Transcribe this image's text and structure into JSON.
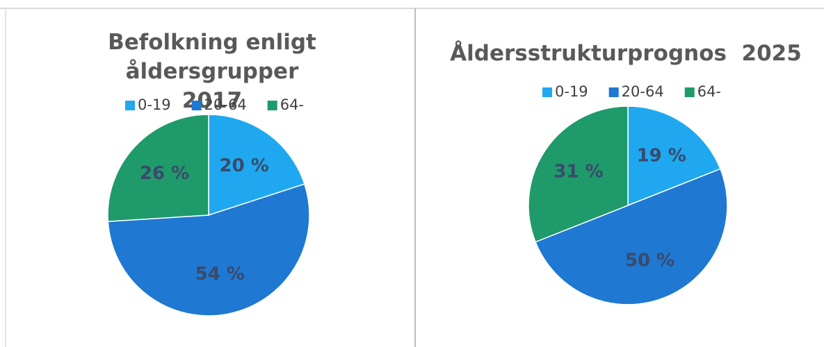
{
  "chart_data": [
    {
      "type": "pie",
      "title": "Befolkning enligt åldersgrupper 2017",
      "categories": [
        "0-19",
        "20-64",
        "64-"
      ],
      "values": [
        20,
        54,
        26
      ],
      "value_labels": [
        "20 %",
        "54 %",
        "26 %"
      ],
      "colors": [
        "#1fa8f0",
        "#1f78d2",
        "#1f9a6b"
      ]
    },
    {
      "type": "pie",
      "title": "Åldersstrukturprognos  2025",
      "categories": [
        "0-19",
        "20-64",
        "64-"
      ],
      "values": [
        19,
        50,
        31
      ],
      "value_labels": [
        "19 %",
        "50 %",
        "31 %"
      ],
      "colors": [
        "#1fa8f0",
        "#1f78d2",
        "#1f9a6b"
      ]
    }
  ]
}
